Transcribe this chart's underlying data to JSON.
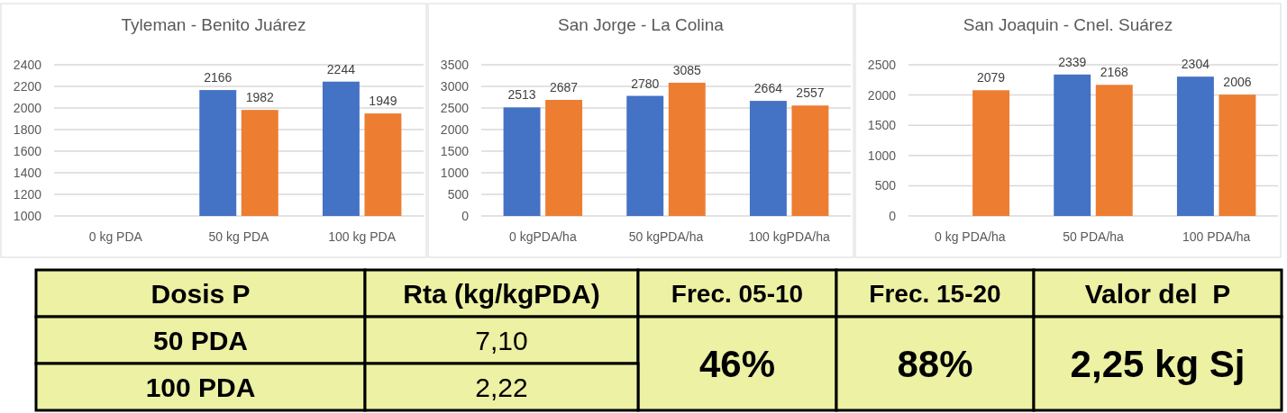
{
  "chart_data": [
    {
      "type": "bar",
      "title": "Tyleman - Benito Juárez",
      "categories": [
        "0 kg PDA",
        "50 kg PDA",
        "100 kg PDA"
      ],
      "series": [
        {
          "color": "#4472c4",
          "values": [
            null,
            2166,
            2244
          ]
        },
        {
          "color": "#ed7d31",
          "values": [
            null,
            1982,
            1949
          ]
        }
      ],
      "ylim": [
        1000,
        2400
      ],
      "yticks": [
        1000,
        1200,
        1400,
        1600,
        1800,
        2000,
        2200,
        2400
      ],
      "grid": "y",
      "data_labels": true
    },
    {
      "type": "bar",
      "title": "San Jorge - La Colina",
      "categories": [
        "0 kgPDA/ha",
        "50 kgPDA/ha",
        "100 kgPDA/ha"
      ],
      "series": [
        {
          "color": "#4472c4",
          "values": [
            2513,
            2780,
            2664
          ]
        },
        {
          "color": "#ed7d31",
          "values": [
            2687,
            3085,
            2557
          ]
        }
      ],
      "ylim": [
        0,
        3500
      ],
      "yticks": [
        0,
        500,
        1000,
        1500,
        2000,
        2500,
        3000,
        3500
      ],
      "grid": "y",
      "data_labels": true
    },
    {
      "type": "bar",
      "title": "San Joaquin - Cnel. Suárez",
      "categories": [
        "0 kg PDA/ha",
        "50 PDA/ha",
        "100 PDA/ha"
      ],
      "series": [
        {
          "color": "#4472c4",
          "values": [
            null,
            2339,
            2304
          ]
        },
        {
          "color": "#ed7d31",
          "values": [
            2079,
            2168,
            2006
          ]
        }
      ],
      "ylim": [
        0,
        2500
      ],
      "yticks": [
        0,
        500,
        1000,
        1500,
        2000,
        2500
      ],
      "grid": "y",
      "data_labels": true
    },
    {
      "type": "other",
      "annotations": [
        "Dosis P",
        "Rta (kg/kgPDA)",
        "Frec. 05-10",
        "Frec. 15-20",
        "Valor del  P",
        "50 PDA",
        "7,10",
        "46%",
        "88%",
        "2,25 kg Sj",
        "100 PDA",
        "2,22"
      ]
    }
  ]
}
